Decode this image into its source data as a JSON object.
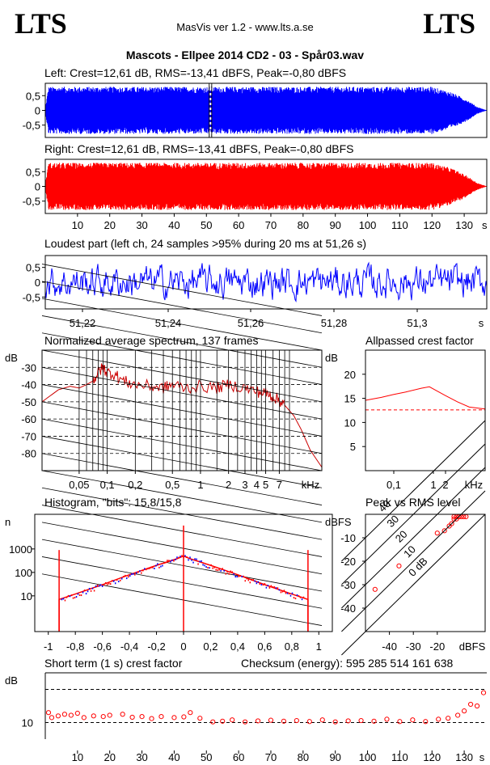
{
  "header": {
    "logo_left": "LTS",
    "logo_right": "LTS",
    "app": "MasVis ver 1.2 - www.lts.a.se",
    "title": "Mascots - Ellpee 2014 CD2 - 03 - Spår03.wav"
  },
  "chart_data": [
    {
      "type": "area",
      "title": "Left: Crest=12,61 dB, RMS=-13,41 dBFS, Peak=-0,80 dBFS",
      "yticks": [
        "0,5",
        "0",
        "-0,5"
      ],
      "ylim": [
        -0.92,
        0.92
      ],
      "xlim": [
        0,
        137
      ],
      "color": "#0000ff",
      "envelope": [
        [
          0,
          0.05
        ],
        [
          1,
          0.8
        ],
        [
          120,
          0.8
        ],
        [
          126,
          0.62
        ],
        [
          131,
          0.35
        ],
        [
          134,
          0.12
        ],
        [
          136.5,
          0.02
        ]
      ],
      "marker_s": 51.26
    },
    {
      "type": "area",
      "title": "Right: Crest=12,61 dB, RMS=-13,41 dBFS, Peak=-0,80 dBFS",
      "yticks": [
        "0,5",
        "0",
        "-0,5"
      ],
      "ylim": [
        -0.92,
        0.92
      ],
      "xlim": [
        0,
        137
      ],
      "xticks": [
        "10",
        "20",
        "30",
        "40",
        "50",
        "60",
        "70",
        "80",
        "90",
        "100",
        "110",
        "120",
        "130",
        "s"
      ],
      "color": "#ff0000",
      "envelope": [
        [
          0,
          0.05
        ],
        [
          1,
          0.8
        ],
        [
          120,
          0.8
        ],
        [
          126,
          0.62
        ],
        [
          131,
          0.35
        ],
        [
          134,
          0.12
        ],
        [
          136.5,
          0.02
        ]
      ]
    },
    {
      "type": "line",
      "title": "Loudest part (left  ch, 24 samples >95% during 20 ms at 51,26 s)",
      "yticks": [
        "0,5",
        "0",
        "-0,5"
      ],
      "xticks": [
        "51,22",
        "51,24",
        "51,26",
        "51,28",
        "51,3",
        "s"
      ],
      "ylim": [
        -0.9,
        0.9
      ],
      "color": "#0000ff"
    },
    {
      "type": "line",
      "title": "Normalized average spectrum, 137 frames",
      "ylabel": "dB",
      "yticks": [
        "-30",
        "-40",
        "-50",
        "-60",
        "-70",
        "-80"
      ],
      "xticks": [
        "0,05",
        "0,1",
        "0,2",
        "0,5",
        "1",
        "2",
        "3",
        "4",
        "5",
        "7",
        "kHz"
      ],
      "xlim": [
        0.02,
        20
      ],
      "ylim": [
        -90,
        -20
      ],
      "color": "#cc0000",
      "x": [
        0.02,
        0.03,
        0.04,
        0.05,
        0.06,
        0.07,
        0.08,
        0.09,
        0.1,
        0.12,
        0.15,
        0.2,
        0.3,
        0.4,
        0.5,
        0.7,
        1,
        1.5,
        2,
        3,
        4,
        5,
        6,
        7,
        8,
        10,
        12,
        15,
        20
      ],
      "y": [
        -50,
        -43,
        -41,
        -42,
        -40,
        -38,
        -33,
        -30,
        -33,
        -34,
        -38,
        -40,
        -41,
        -42,
        -40,
        -42,
        -41,
        -42,
        -40,
        -42,
        -44,
        -45,
        -47,
        -49,
        -52,
        -58,
        -66,
        -78,
        -88
      ]
    },
    {
      "type": "line",
      "title": "Allpassed crest factor",
      "ylabel": "dB",
      "yticks": [
        "20",
        "15",
        "10",
        "5"
      ],
      "xticks": [
        "0,1",
        "1",
        "2",
        "kHz"
      ],
      "xlim": [
        0.02,
        20
      ],
      "ylim": [
        0,
        25
      ],
      "color": "#ff0000",
      "x": [
        0.02,
        0.05,
        0.1,
        0.2,
        0.5,
        0.8,
        1.2,
        2,
        4,
        8,
        20
      ],
      "y": [
        14.6,
        15.2,
        15.8,
        16.3,
        17.1,
        17.4,
        16.6,
        15.6,
        14.3,
        13.2,
        12.8
      ],
      "reference": 12.61
    },
    {
      "type": "area",
      "title": "Histogram, \"bits\": 15,8/15,8",
      "ylabel": "n",
      "yticks": [
        "1000",
        "100",
        "10"
      ],
      "xticks": [
        "-1",
        "-0,8",
        "-0,6",
        "-0,4",
        "-0,2",
        "0",
        "0,2",
        "0,4",
        "0,6",
        "0,8",
        "1"
      ],
      "xlim": [
        -1.1,
        1.1
      ],
      "ylim": [
        0.3,
        30000
      ],
      "color": "#ff0000",
      "x": [
        -0.92,
        -0.8,
        -0.6,
        -0.4,
        -0.2,
        -0.05,
        0,
        0.05,
        0.2,
        0.4,
        0.6,
        0.8,
        0.92
      ],
      "y": [
        7,
        12,
        30,
        80,
        200,
        380,
        500,
        380,
        200,
        80,
        30,
        12,
        7
      ],
      "spikes": [
        {
          "x": -0.92,
          "y": 900
        },
        {
          "x": 0,
          "y": 10000
        },
        {
          "x": 0.92,
          "y": 900
        }
      ]
    },
    {
      "type": "scatter",
      "title": "Peak vs RMS level",
      "ylabel": "dBFS",
      "yticks": [
        "-10",
        "-20",
        "-30",
        "-40"
      ],
      "xticks": [
        "-40",
        "-30",
        "-20",
        "dBFS"
      ],
      "xlim": [
        -50,
        0
      ],
      "ylim": [
        -50,
        0
      ],
      "diagonals": [
        "0 dB",
        "10",
        "20",
        "30",
        "40"
      ],
      "x": [
        -46,
        -36,
        -20,
        -17,
        -15,
        -14,
        -13,
        -13,
        -12,
        -12,
        -11,
        -11,
        -10,
        -9,
        -8
      ],
      "y": [
        -32,
        -22,
        -8,
        -7,
        -5,
        -4,
        -2,
        -1,
        -1,
        -2,
        -1,
        -1,
        -1,
        -1,
        -1
      ]
    },
    {
      "type": "scatter",
      "title": "Short term (1 s) crest factor",
      "annotation": "Checksum (energy):   595 285 514 161 638",
      "ylabel": "dB",
      "yticks": [
        "10"
      ],
      "xticks": [
        "10",
        "20",
        "30",
        "40",
        "50",
        "60",
        "70",
        "80",
        "90",
        "100",
        "110",
        "120",
        "130",
        "s"
      ],
      "xlim": [
        0,
        137
      ],
      "ylim": [
        5,
        25
      ],
      "color": "#ff0000",
      "x": [
        1,
        2,
        4,
        6,
        8,
        10,
        12,
        15,
        18,
        20,
        24,
        27,
        30,
        33,
        36,
        40,
        43,
        45,
        48,
        52,
        55,
        58,
        62,
        66,
        70,
        74,
        78,
        82,
        86,
        90,
        94,
        98,
        102,
        106,
        110,
        114,
        118,
        122,
        125,
        128,
        130,
        132,
        134,
        136
      ],
      "y": [
        13,
        11.5,
        12,
        12.5,
        12.2,
        12.8,
        11.5,
        12,
        11.8,
        12.2,
        12.5,
        11.6,
        11.8,
        11.2,
        11.8,
        11.5,
        11.7,
        13,
        11.3,
        10.2,
        10.4,
        10.8,
        10.2,
        10.5,
        10.7,
        10.4,
        10.6,
        10.3,
        10.8,
        10.2,
        10.5,
        10.6,
        10.4,
        11,
        10.3,
        10.8,
        10.3,
        11,
        11.3,
        12.2,
        13.5,
        15.5,
        15,
        19
      ]
    }
  ]
}
